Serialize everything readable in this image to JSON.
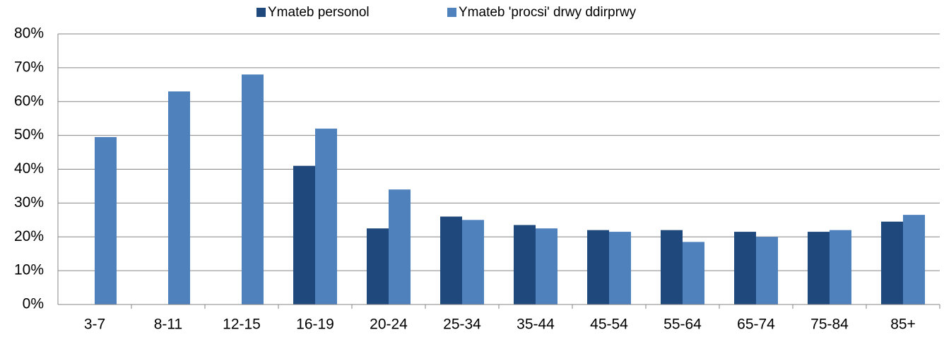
{
  "chart_data": {
    "type": "bar",
    "categories": [
      "3-7",
      "8-11",
      "12-15",
      "16-19",
      "20-24",
      "25-34",
      "35-44",
      "45-54",
      "55-64",
      "65-74",
      "75-84",
      "85+"
    ],
    "series": [
      {
        "name": "Ymateb personol",
        "color": "#1f497d",
        "values": [
          null,
          null,
          null,
          41,
          22.5,
          26,
          23.5,
          22,
          22,
          21.5,
          21.5,
          24.5
        ]
      },
      {
        "name": "Ymateb 'procsi' drwy ddirprwy",
        "color": "#4f81bd",
        "values": [
          49.5,
          63,
          68,
          52,
          34,
          25,
          22.5,
          21.5,
          18.5,
          20,
          22,
          26.5
        ]
      }
    ],
    "ylim": [
      0,
      80
    ],
    "yticks": [
      {
        "value": 0,
        "label": "0%"
      },
      {
        "value": 10,
        "label": "10%"
      },
      {
        "value": 20,
        "label": "20%"
      },
      {
        "value": 30,
        "label": "30%"
      },
      {
        "value": 40,
        "label": "40%"
      },
      {
        "value": 50,
        "label": "50%"
      },
      {
        "value": 60,
        "label": "60%"
      },
      {
        "value": 70,
        "label": "70%"
      },
      {
        "value": 80,
        "label": "80%"
      }
    ],
    "grid": true,
    "legend": "top"
  }
}
